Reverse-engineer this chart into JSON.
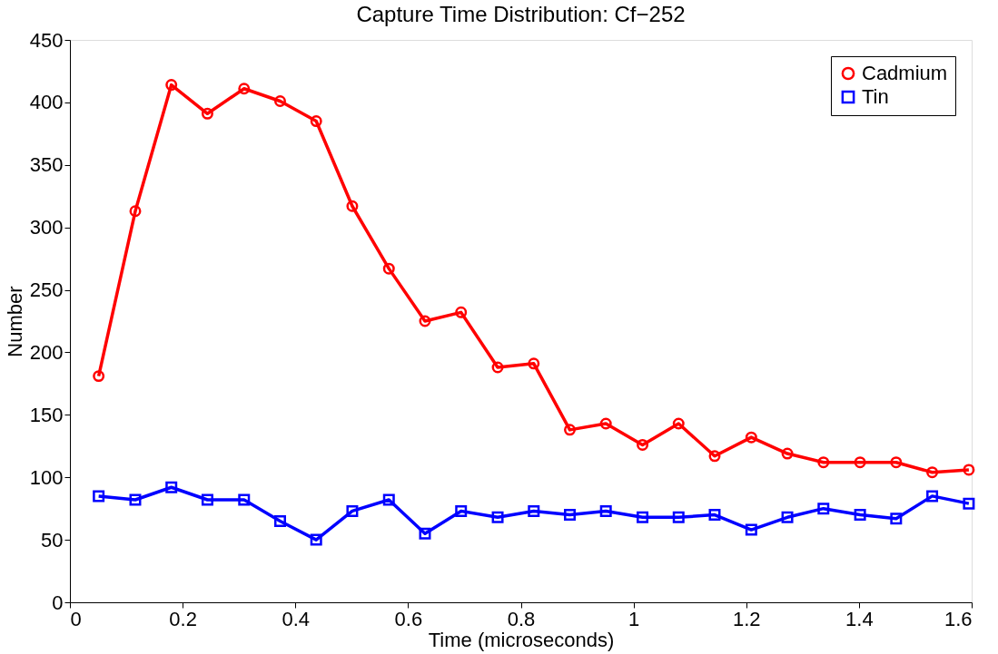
{
  "chart_data": {
    "type": "line",
    "title": "Capture Time Distribution: Cf−252",
    "xlabel": "Time (microseconds)",
    "ylabel": "Number",
    "x": [
      0.051,
      0.116,
      0.18,
      0.244,
      0.309,
      0.373,
      0.437,
      0.501,
      0.566,
      0.63,
      0.694,
      0.759,
      0.823,
      0.887,
      0.951,
      1.016,
      1.08,
      1.144,
      1.209,
      1.273,
      1.337,
      1.402,
      1.466,
      1.53,
      1.595
    ],
    "series": [
      {
        "name": "Cadmium",
        "color": "#ff0000",
        "marker": "circle",
        "values": [
          181,
          313,
          414,
          391,
          411,
          401,
          385,
          317,
          267,
          225,
          232,
          188,
          191,
          138,
          143,
          126,
          143,
          117,
          132,
          119,
          112,
          112,
          112,
          104,
          106
        ]
      },
      {
        "name": "Tin",
        "color": "#0000ff",
        "marker": "square",
        "values": [
          85,
          82,
          92,
          82,
          82,
          65,
          50,
          73,
          82,
          55,
          73,
          68,
          73,
          70,
          73,
          68,
          68,
          70,
          58,
          68,
          75,
          70,
          67,
          85,
          79
        ]
      }
    ],
    "xlim": [
      0,
      1.6
    ],
    "xticks": [
      0,
      0.2,
      0.4,
      0.6,
      0.8,
      1,
      1.2,
      1.4,
      1.6
    ],
    "ylim": [
      0,
      450
    ],
    "yticks": [
      0,
      50,
      100,
      150,
      200,
      250,
      300,
      350,
      400,
      450
    ],
    "grid": false,
    "legend": "top right",
    "line_style": "solid"
  }
}
